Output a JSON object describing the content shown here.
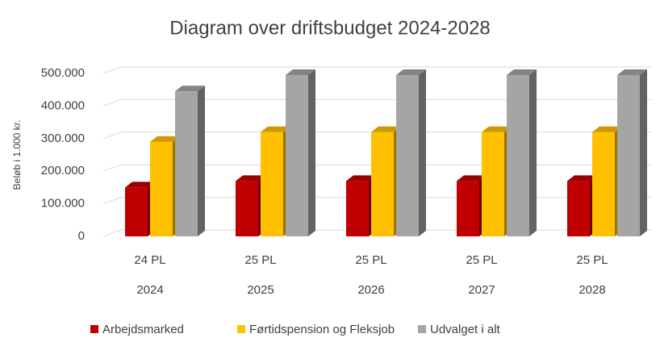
{
  "chart_data": {
    "type": "bar3d",
    "title": "Diagram over driftsbudget 2024-2028",
    "y_label": "Beløb i 1.000 kr.",
    "categories": [
      [
        "24 PL",
        "2024"
      ],
      [
        "25 PL",
        "2025"
      ],
      [
        "25 PL",
        "2026"
      ],
      [
        "25 PL",
        "2027"
      ],
      [
        "25 PL",
        "2028"
      ]
    ],
    "series": [
      {
        "name": "Arbejdsmarked",
        "color": "#c00000",
        "values": [
          150000,
          170000,
          170000,
          170000,
          170000
        ]
      },
      {
        "name": "Førtidspension og Fleksjob",
        "color": "#ffc000",
        "values": [
          290000,
          320000,
          320000,
          320000,
          320000
        ]
      },
      {
        "name": "Udvalget i alt",
        "color": "#a5a5a5",
        "values": [
          445000,
          495000,
          495000,
          495000,
          495000
        ]
      }
    ],
    "ylim": [
      0,
      500000
    ],
    "yticks": [
      0,
      {
        "value": 100000,
        "label": "100.000"
      },
      {
        "value": 200000,
        "label": "200.000"
      },
      {
        "value": 300000,
        "label": "300.000"
      },
      {
        "value": 400000,
        "label": "400.000"
      },
      {
        "value": 500000,
        "label": "500.000"
      }
    ],
    "grid": true,
    "legend": "bottom"
  }
}
